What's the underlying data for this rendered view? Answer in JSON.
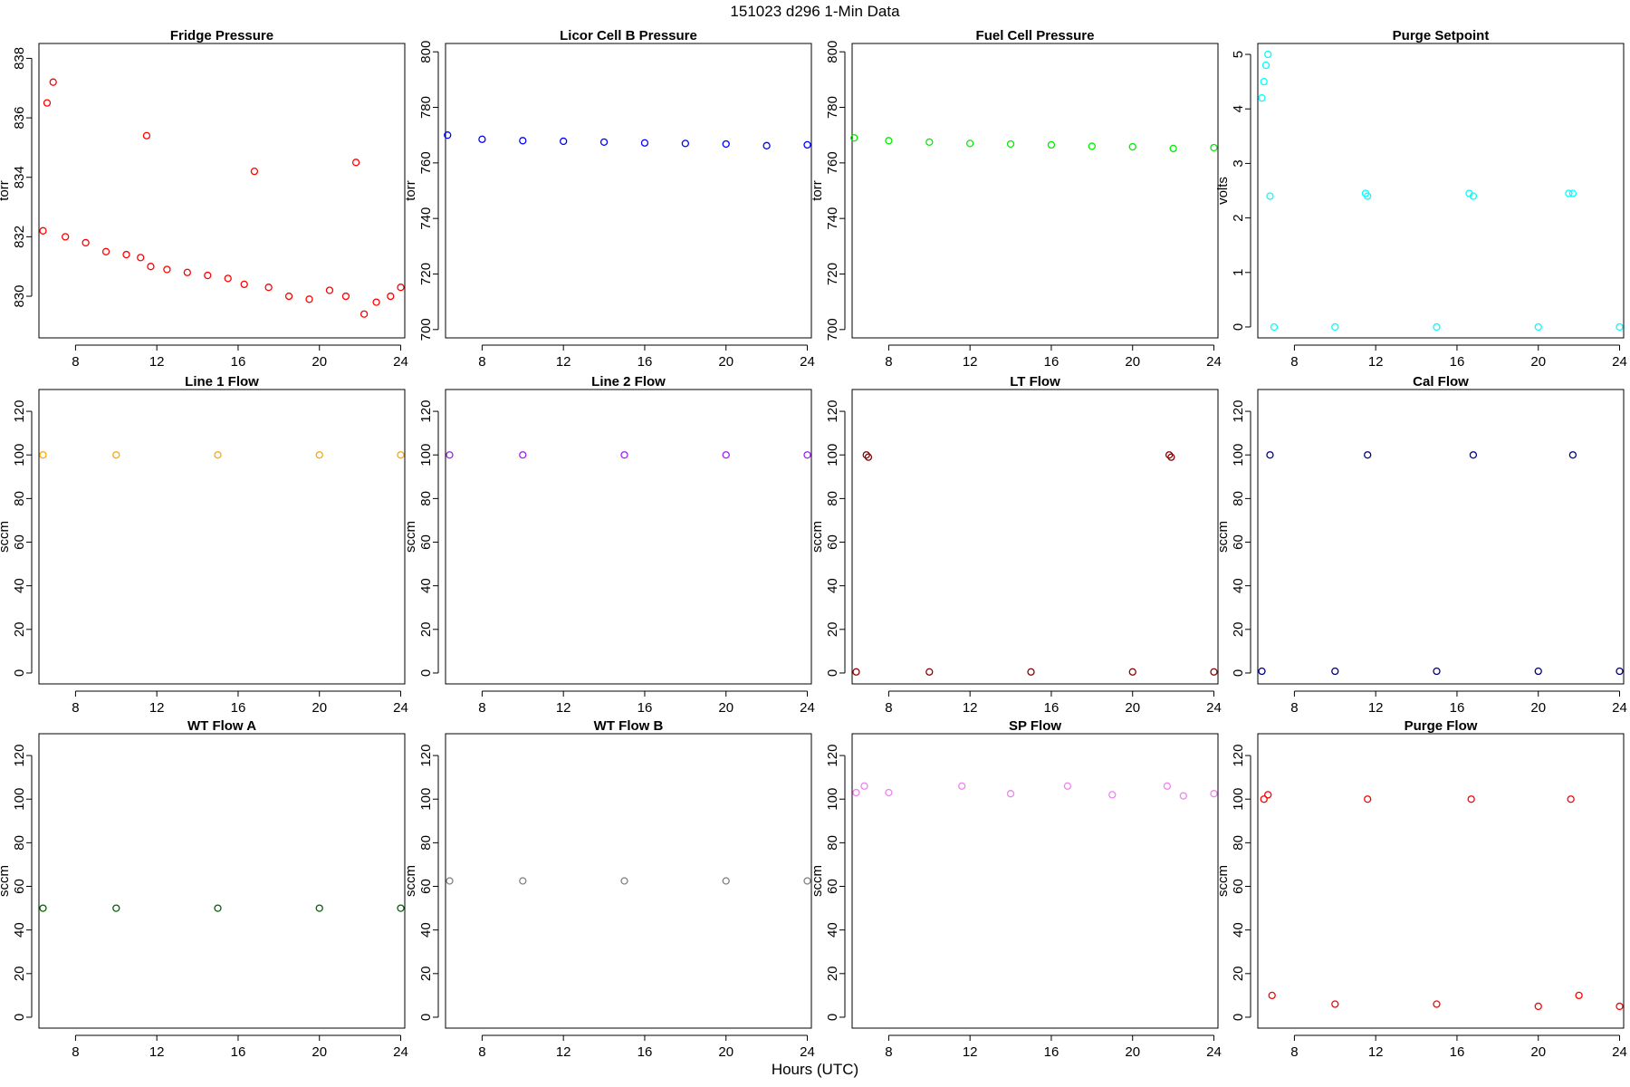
{
  "figure": {
    "title": "151023   d296   1-Min Data",
    "xlabel": "Hours (UTC)"
  },
  "chart_data": [
    {
      "type": "scatter",
      "title": "Fridge Pressure",
      "ylabel": "torr",
      "color": "#ff0000",
      "xlim": [
        6.2,
        24.2
      ],
      "ylim": [
        828.6,
        838.5
      ],
      "xticks": [
        8,
        12,
        16,
        20,
        24
      ],
      "yticks": [
        830,
        832,
        834,
        836,
        838
      ],
      "x": [
        6.4,
        6.6,
        6.9,
        7.5,
        8.5,
        9.5,
        10.5,
        11.2,
        11.5,
        11.7,
        12.5,
        13.5,
        14.5,
        15.5,
        16.3,
        16.8,
        17.5,
        18.5,
        19.5,
        20.5,
        21.3,
        21.8,
        22.2,
        22.8,
        23.5,
        24.0
      ],
      "y": [
        832.2,
        836.5,
        837.2,
        832.0,
        831.8,
        831.5,
        831.4,
        831.3,
        835.4,
        831.0,
        830.9,
        830.8,
        830.7,
        830.6,
        830.4,
        834.2,
        830.3,
        830.0,
        829.9,
        830.2,
        830.0,
        834.5,
        829.4,
        829.8,
        830.0,
        830.3
      ]
    },
    {
      "type": "scatter",
      "title": "Licor Cell B Pressure",
      "ylabel": "torr",
      "color": "#0000ff",
      "xlim": [
        6.2,
        24.2
      ],
      "ylim": [
        697,
        803
      ],
      "xticks": [
        8,
        12,
        16,
        20,
        24
      ],
      "yticks": [
        700,
        720,
        740,
        760,
        780,
        800
      ],
      "x": [
        6.3,
        8,
        10,
        12,
        14,
        16,
        18,
        20,
        22,
        24
      ],
      "y": [
        770,
        768.5,
        768,
        767.8,
        767.5,
        767.2,
        767,
        766.8,
        766.2,
        766.5
      ]
    },
    {
      "type": "scatter",
      "title": "Fuel Cell Pressure",
      "ylabel": "torr",
      "color": "#00ee00",
      "xlim": [
        6.2,
        24.2
      ],
      "ylim": [
        697,
        803
      ],
      "xticks": [
        8,
        12,
        16,
        20,
        24
      ],
      "yticks": [
        700,
        720,
        740,
        760,
        780,
        800
      ],
      "x": [
        6.3,
        8,
        10,
        12,
        14,
        16,
        18,
        20,
        22,
        24
      ],
      "y": [
        769,
        768,
        767.5,
        767,
        766.8,
        766.5,
        766,
        765.8,
        765.2,
        765.5
      ]
    },
    {
      "type": "scatter",
      "title": "Purge Setpoint",
      "ylabel": "volts",
      "color": "#00ffff",
      "xlim": [
        6.2,
        24.2
      ],
      "ylim": [
        -0.2,
        5.2
      ],
      "xticks": [
        8,
        12,
        16,
        20,
        24
      ],
      "yticks": [
        0,
        1,
        2,
        3,
        4,
        5
      ],
      "x": [
        6.4,
        6.5,
        6.6,
        6.7,
        6.8,
        11.5,
        11.6,
        16.6,
        16.8,
        21.5,
        21.7,
        7.0,
        10.0,
        15.0,
        20.0,
        24.0
      ],
      "y": [
        4.2,
        4.5,
        4.8,
        5.0,
        2.4,
        2.45,
        2.4,
        2.45,
        2.4,
        2.45,
        2.45,
        0,
        0,
        0,
        0,
        0
      ]
    },
    {
      "type": "scatter",
      "title": "Line 1 Flow",
      "ylabel": "sccm",
      "color": "#ffa500",
      "xlim": [
        6.2,
        24.2
      ],
      "ylim": [
        -5,
        130
      ],
      "xticks": [
        8,
        12,
        16,
        20,
        24
      ],
      "yticks": [
        0,
        20,
        40,
        60,
        80,
        100,
        120
      ],
      "x": [
        6.4,
        10,
        15,
        20,
        24
      ],
      "y": [
        100,
        100,
        100,
        100,
        100
      ]
    },
    {
      "type": "scatter",
      "title": "Line 2 Flow",
      "ylabel": "sccm",
      "color": "#a020f0",
      "xlim": [
        6.2,
        24.2
      ],
      "ylim": [
        -5,
        130
      ],
      "xticks": [
        8,
        12,
        16,
        20,
        24
      ],
      "yticks": [
        0,
        20,
        40,
        60,
        80,
        100,
        120
      ],
      "x": [
        6.4,
        10,
        15,
        20,
        24
      ],
      "y": [
        100,
        100,
        100,
        100,
        100
      ]
    },
    {
      "type": "scatter",
      "title": "LT Flow",
      "ylabel": "sccm",
      "color": "#8b0000",
      "xlim": [
        6.2,
        24.2
      ],
      "ylim": [
        -5,
        130
      ],
      "xticks": [
        8,
        12,
        16,
        20,
        24
      ],
      "yticks": [
        0,
        20,
        40,
        60,
        80,
        100,
        120
      ],
      "x": [
        6.9,
        7.0,
        21.8,
        21.9,
        6.4,
        10,
        15,
        20,
        24
      ],
      "y": [
        100,
        99,
        100,
        99,
        0.5,
        0.5,
        0.5,
        0.5,
        0.5
      ]
    },
    {
      "type": "scatter",
      "title": "Cal Flow",
      "ylabel": "sccm",
      "color": "#00008b",
      "xlim": [
        6.2,
        24.2
      ],
      "ylim": [
        -5,
        130
      ],
      "xticks": [
        8,
        12,
        16,
        20,
        24
      ],
      "yticks": [
        0,
        20,
        40,
        60,
        80,
        100,
        120
      ],
      "x": [
        6.8,
        11.6,
        16.8,
        21.7,
        6.4,
        10,
        15,
        20,
        24
      ],
      "y": [
        100,
        100,
        100,
        100,
        0.8,
        0.8,
        0.8,
        0.8,
        0.8
      ]
    },
    {
      "type": "scatter",
      "title": "WT Flow A",
      "ylabel": "sccm",
      "color": "#006400",
      "xlim": [
        6.2,
        24.2
      ],
      "ylim": [
        -5,
        130
      ],
      "xticks": [
        8,
        12,
        16,
        20,
        24
      ],
      "yticks": [
        0,
        20,
        40,
        60,
        80,
        100,
        120
      ],
      "x": [
        6.4,
        10,
        15,
        20,
        24
      ],
      "y": [
        50,
        50,
        50,
        50,
        50
      ]
    },
    {
      "type": "scatter",
      "title": "WT Flow B",
      "ylabel": "sccm",
      "color": "#808080",
      "xlim": [
        6.2,
        24.2
      ],
      "ylim": [
        -5,
        130
      ],
      "xticks": [
        8,
        12,
        16,
        20,
        24
      ],
      "yticks": [
        0,
        20,
        40,
        60,
        80,
        100,
        120
      ],
      "x": [
        6.4,
        10,
        15,
        20,
        24
      ],
      "y": [
        62.5,
        62.5,
        62.5,
        62.5,
        62.5
      ]
    },
    {
      "type": "scatter",
      "title": "SP Flow",
      "ylabel": "sccm",
      "color": "#ee82ee",
      "xlim": [
        6.2,
        24.2
      ],
      "ylim": [
        -5,
        130
      ],
      "xticks": [
        8,
        12,
        16,
        20,
        24
      ],
      "yticks": [
        0,
        20,
        40,
        60,
        80,
        100,
        120
      ],
      "x": [
        6.4,
        6.8,
        8,
        11.6,
        14,
        16.8,
        19,
        21.7,
        22.5,
        24
      ],
      "y": [
        103,
        106,
        103,
        106,
        102.5,
        106,
        102,
        106,
        101.5,
        102.5
      ]
    },
    {
      "type": "scatter",
      "title": "Purge Flow",
      "ylabel": "sccm",
      "color": "#ff0000",
      "xlim": [
        6.2,
        24.2
      ],
      "ylim": [
        -5,
        130
      ],
      "xticks": [
        8,
        12,
        16,
        20,
        24
      ],
      "yticks": [
        0,
        20,
        40,
        60,
        80,
        100,
        120
      ],
      "x": [
        6.5,
        6.7,
        11.6,
        16.7,
        21.6,
        6.9,
        10,
        15,
        20,
        22,
        24
      ],
      "y": [
        100,
        102,
        100,
        100,
        100,
        10,
        6,
        6,
        5,
        10,
        5
      ]
    }
  ]
}
